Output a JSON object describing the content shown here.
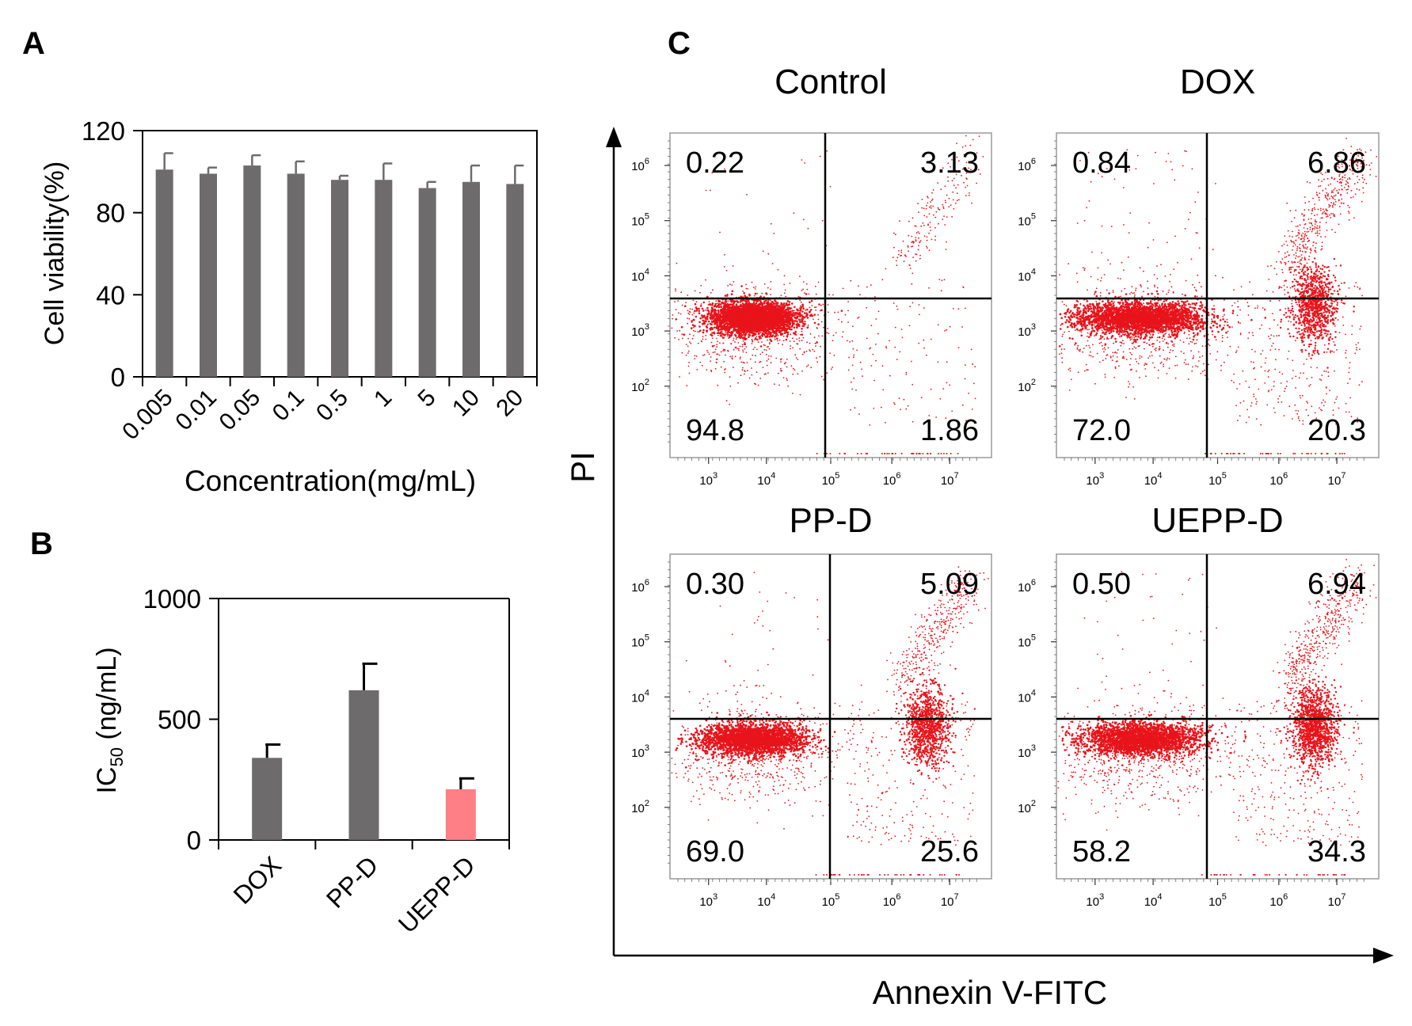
{
  "panel_labels": {
    "a": "A",
    "b": "B",
    "c": "C"
  },
  "colors": {
    "bar": "#6e6b6c",
    "highlight": "#ff7f86",
    "dot": "#e8141b",
    "axis": "#000000"
  },
  "chart_data": [
    {
      "id": "A",
      "type": "bar",
      "title": "",
      "xlabel": "Concentration(mg/mL)",
      "ylabel": "Cell viability(%)",
      "ylim": [
        0,
        120
      ],
      "yticks": [
        "0",
        "40",
        "80",
        "120"
      ],
      "categories": [
        "0.005",
        "0.01",
        "0.05",
        "0.1",
        "0.5",
        "1",
        "5",
        "10",
        "20"
      ],
      "values": [
        101,
        99,
        103,
        99,
        96,
        96,
        92,
        95,
        94
      ],
      "errors": [
        8,
        3,
        5,
        6,
        2,
        8,
        3,
        8,
        9
      ]
    },
    {
      "id": "B",
      "type": "bar",
      "title": "",
      "xlabel": "",
      "ylabel": {
        "base": "IC",
        "sub": "50",
        "rest": " (ng/mL)"
      },
      "ylim": [
        0,
        1000
      ],
      "yticks": [
        "0",
        "500",
        "1000"
      ],
      "categories": [
        "DOX",
        "PP-D",
        "UEPP-D"
      ],
      "values": [
        340,
        620,
        210
      ],
      "errors": [
        55,
        110,
        45
      ],
      "highlight": [
        false,
        false,
        true
      ]
    },
    {
      "id": "C",
      "type": "scatter",
      "title": "",
      "xlabel": "Annexin V-FITC",
      "ylabel": "PI",
      "x_ticks": [
        "10",
        "10",
        "10",
        "10",
        "10"
      ],
      "x_tick_exps": [
        "3",
        "4",
        "5",
        "6",
        "7"
      ],
      "y_ticks": [
        "10",
        "10",
        "10",
        "10",
        "10"
      ],
      "y_tick_exps": [
        "2",
        "3",
        "4",
        "5",
        "6"
      ],
      "plots": [
        {
          "title": "Control",
          "quadrants": {
            "ul": "0.22",
            "ur": "3.13",
            "ll": "94.8",
            "lr": "1.86"
          }
        },
        {
          "title": "DOX",
          "quadrants": {
            "ul": "0.84",
            "ur": "6.86",
            "ll": "72.0",
            "lr": "20.3"
          }
        },
        {
          "title": "PP-D",
          "quadrants": {
            "ul": "0.30",
            "ur": "5.09",
            "ll": "69.0",
            "lr": "25.6"
          }
        },
        {
          "title": "UEPP-D",
          "quadrants": {
            "ul": "0.50",
            "ur": "6.94",
            "ll": "58.2",
            "lr": "34.3"
          }
        }
      ]
    }
  ]
}
